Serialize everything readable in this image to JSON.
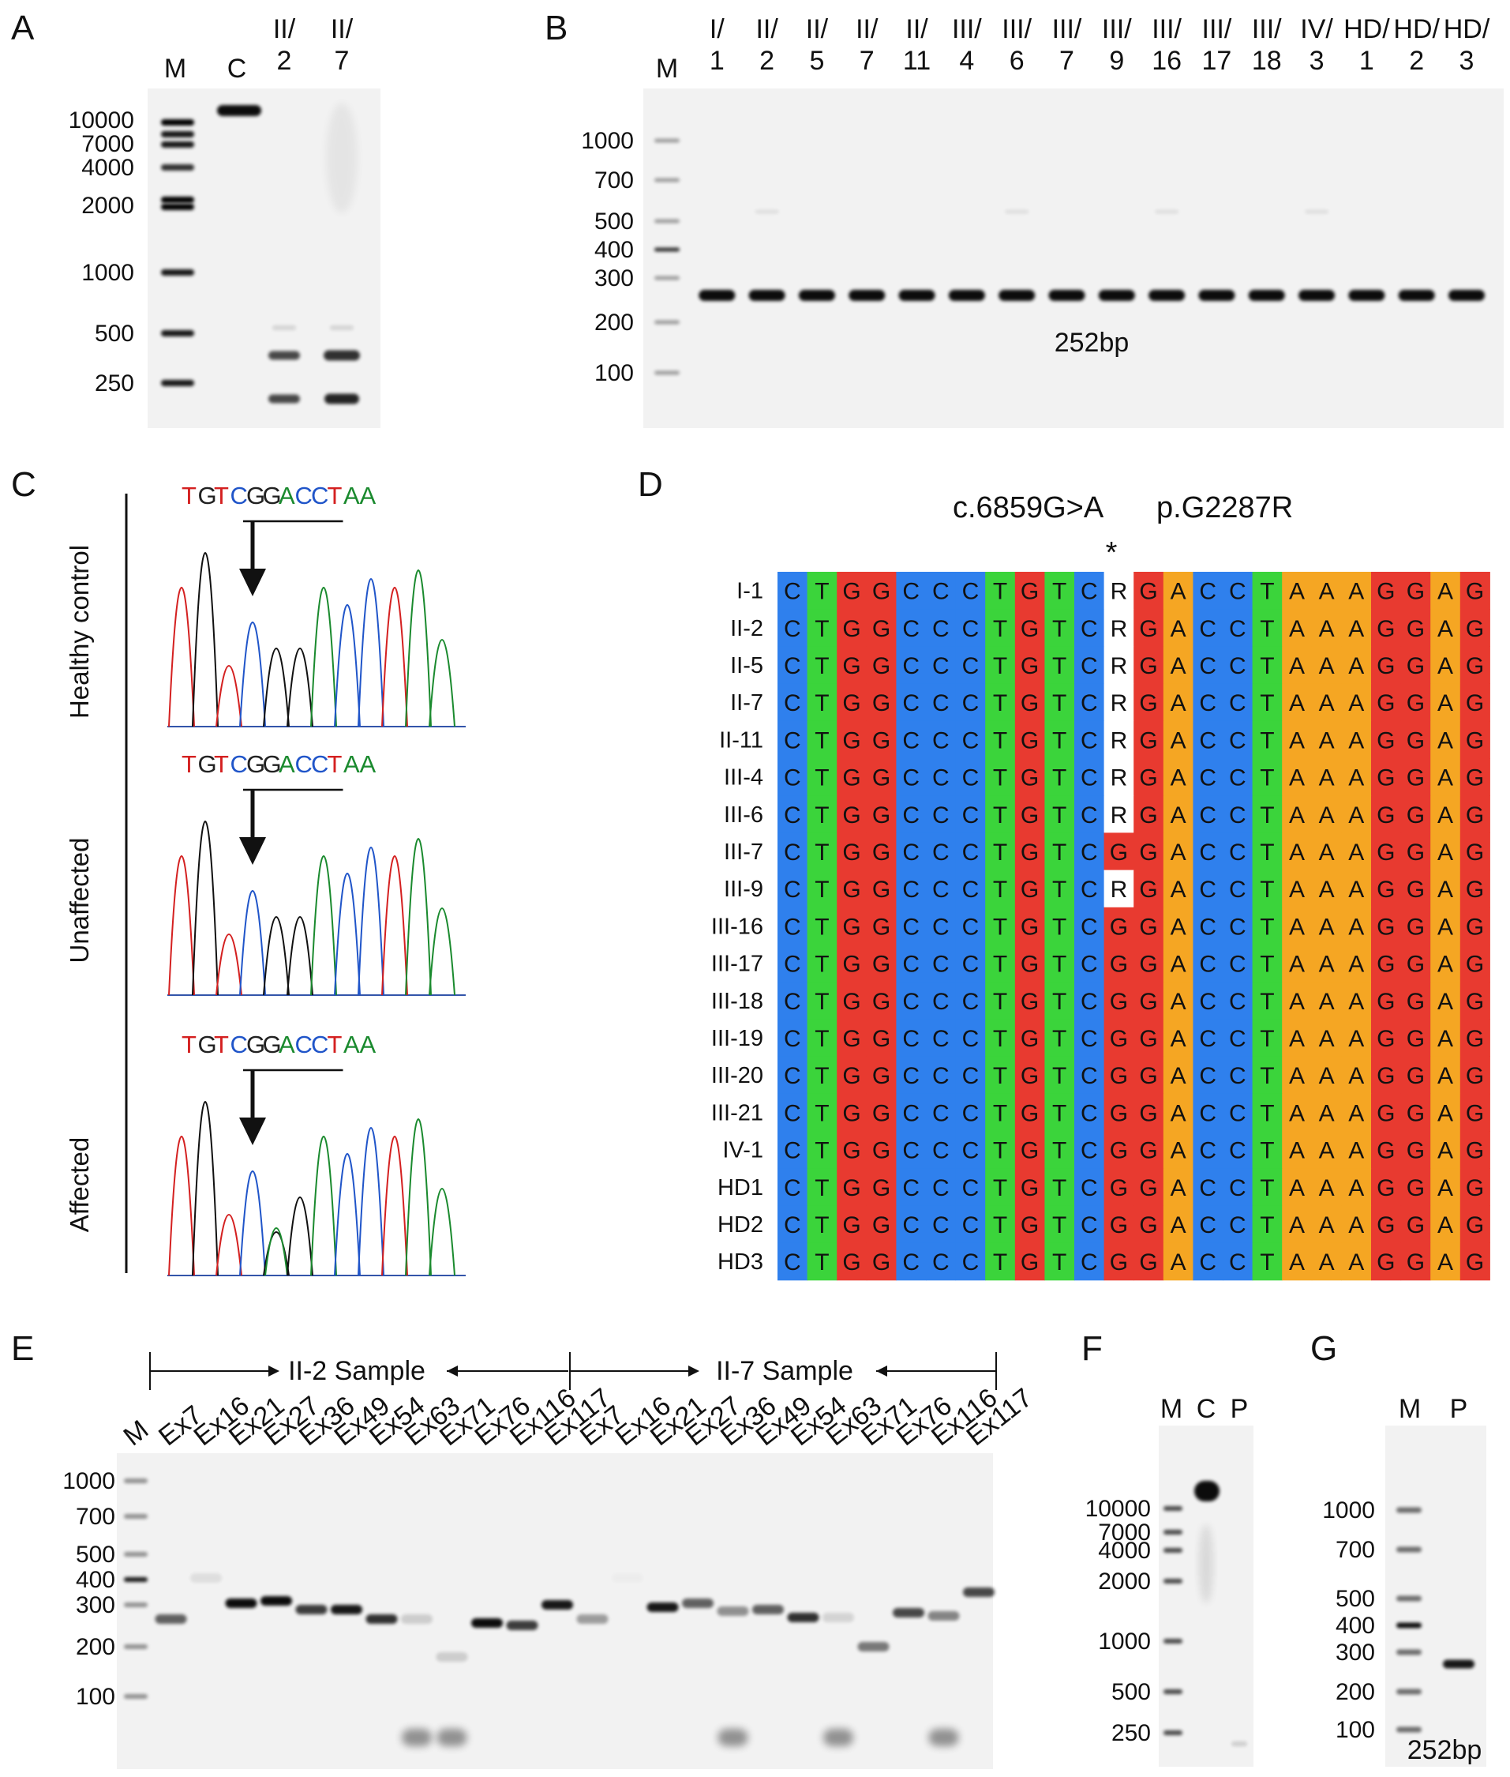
{
  "colors": {
    "A": "#f5a623",
    "C": "#2f80ed",
    "G": "#e83a30",
    "T": "#3bd43b",
    "R": "#ffffff",
    "seqA": "#1a8a2e",
    "seqC": "#2055c9",
    "seqG": "#222222",
    "seqT": "#d42020"
  },
  "panelA": {
    "letter": "A",
    "lanes": [
      "M",
      "C",
      "II/\n2",
      "II/\n7"
    ],
    "ladder": [
      "10000",
      "7000",
      "4000",
      "2000",
      "1000",
      "500",
      "250"
    ]
  },
  "panelB": {
    "letter": "B",
    "lanes": [
      "M",
      "I/\n1",
      "II/\n2",
      "II/\n5",
      "II/\n7",
      "II/\n11",
      "III/\n4",
      "III/\n6",
      "III/\n7",
      "III/\n9",
      "III/\n16",
      "III/\n17",
      "III/\n18",
      "IV/\n3",
      "HD/\n1",
      "HD/\n2",
      "HD/\n3"
    ],
    "ladder": [
      "1000",
      "700",
      "500",
      "400",
      "300",
      "200",
      "100"
    ],
    "band_label": "252bp"
  },
  "panelC": {
    "letter": "C",
    "groups": [
      "Healthy control",
      "Unaffected",
      "Affected"
    ],
    "sequence": "TGTCGGACCTAA"
  },
  "panelD": {
    "letter": "D",
    "title_c": "c.6859G>A",
    "title_p": "p.G2287R",
    "star": "*",
    "rows": [
      {
        "id": "I-1",
        "seq": "CTGGCCCTGTCRGACCTAAAGGAG"
      },
      {
        "id": "II-2",
        "seq": "CTGGCCCTGTCRGACCTAAAGGAG"
      },
      {
        "id": "II-5",
        "seq": "CTGGCCCTGTCRGACCTAAAGGAG"
      },
      {
        "id": "II-7",
        "seq": "CTGGCCCTGTCRGACCTAAAGGAG"
      },
      {
        "id": "II-11",
        "seq": "CTGGCCCTGTCRGACCTAAAGGAG"
      },
      {
        "id": "III-4",
        "seq": "CTGGCCCTGTCRGACCTAAAGGAG"
      },
      {
        "id": "III-6",
        "seq": "CTGGCCCTGTCRGACCTAAAGGAG"
      },
      {
        "id": "III-7",
        "seq": "CTGGCCCTGTCGGACCTAAAGGAG"
      },
      {
        "id": "III-9",
        "seq": "CTGGCCCTGTCRGACCTAAAGGAG"
      },
      {
        "id": "III-16",
        "seq": "CTGGCCCTGTCGGACCTAAAGGAG"
      },
      {
        "id": "III-17",
        "seq": "CTGGCCCTGTCGGACCTAAAGGAG"
      },
      {
        "id": "III-18",
        "seq": "CTGGCCCTGTCGGACCTAAAGGAG"
      },
      {
        "id": "III-19",
        "seq": "CTGGCCCTGTCGGACCTAAAGGAG"
      },
      {
        "id": "III-20",
        "seq": "CTGGCCCTGTCGGACCTAAAGGAG"
      },
      {
        "id": "III-21",
        "seq": "CTGGCCCTGTCGGACCTAAAGGAG"
      },
      {
        "id": "IV-1",
        "seq": "CTGGCCCTGTCGGACCTAAAGGAG"
      },
      {
        "id": "HD1",
        "seq": "CTGGCCCTGTCGGACCTAAAGGAG"
      },
      {
        "id": "HD2",
        "seq": "CTGGCCCTGTCGGACCTAAAGGAG"
      },
      {
        "id": "HD3",
        "seq": "CTGGCCCTGTCGGACCTAAAGGAG"
      }
    ]
  },
  "panelE": {
    "letter": "E",
    "sample1": "II-2 Sample",
    "sample2": "II-7 Sample",
    "lanes": [
      "M",
      "Ex7",
      "Ex16",
      "Ex21",
      "Ex27",
      "Ex36",
      "Ex49",
      "Ex54",
      "Ex63",
      "Ex71",
      "Ex76",
      "Ex116",
      "Ex117",
      "Ex7",
      "Ex16",
      "Ex21",
      "Ex27",
      "Ex36",
      "Ex49",
      "Ex54",
      "Ex63",
      "Ex71",
      "Ex76",
      "Ex116",
      "Ex117"
    ],
    "ladder": [
      "1000",
      "700",
      "500",
      "400",
      "300",
      "200",
      "100"
    ]
  },
  "panelF": {
    "letter": "F",
    "lanes": [
      "M",
      "C",
      "P"
    ],
    "ladder": [
      "10000",
      "7000",
      "4000",
      "2000",
      "1000",
      "500",
      "250"
    ]
  },
  "panelG": {
    "letter": "G",
    "lanes": [
      "M",
      "P"
    ],
    "ladder": [
      "1000",
      "700",
      "500",
      "400",
      "300",
      "200",
      "100"
    ],
    "band_label": "252bp"
  }
}
